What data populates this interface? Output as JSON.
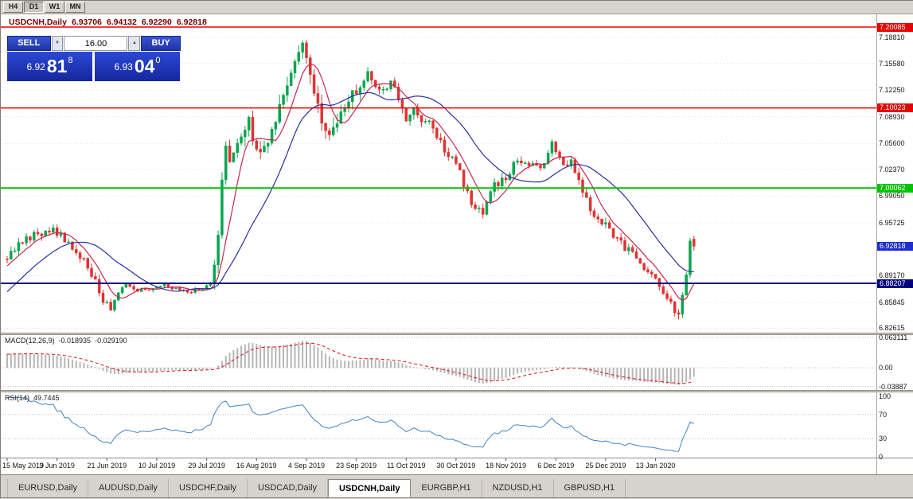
{
  "toolbar": {
    "buttons": [
      {
        "label": "H4",
        "active": false
      },
      {
        "label": "D1",
        "active": true
      },
      {
        "label": "W1",
        "active": false
      },
      {
        "label": "MN",
        "active": false
      }
    ]
  },
  "chart_header": {
    "symbol": "USDCNH,Daily",
    "open": "6.93706",
    "high": "6.94132",
    "low": "6.92290",
    "close": "6.92818"
  },
  "one_click": {
    "sell_label": "SELL",
    "buy_label": "BUY",
    "lot_value": "16.00",
    "icons": {
      "spin_down": "▼",
      "spin_up": "▲"
    },
    "bid": {
      "base": "6.92",
      "pips": "81",
      "sup": "8"
    },
    "ask": {
      "base": "6.93",
      "pips": "04",
      "sup": "0"
    }
  },
  "indicators": {
    "macd": {
      "name": "MACD(12,26,9)",
      "value_main": "-0.018935",
      "value_signal": "-0.029190",
      "axis": [
        "0.063111",
        "0.00",
        "-0.03887"
      ]
    },
    "rsi": {
      "name": "RSI(14)",
      "value": "49.7445",
      "axis": [
        "100",
        "70",
        "30",
        "0"
      ]
    }
  },
  "tabs": [
    {
      "label": "EURUSD,Daily",
      "active": false
    },
    {
      "label": "AUDUSD,Daily",
      "active": false
    },
    {
      "label": "USDCHF,Daily",
      "active": false
    },
    {
      "label": "USDCAD,Daily",
      "active": false
    },
    {
      "label": "USDCNH,Daily",
      "active": true
    },
    {
      "label": "EURGBP,H1",
      "active": false
    },
    {
      "label": "NZDUSD,H1",
      "active": false
    },
    {
      "label": "GBPUSD,H1",
      "active": false
    }
  ],
  "chart_data": {
    "type": "candlestick",
    "symbol": "USDCNH",
    "timeframe": "Daily",
    "x_tick_labels": [
      "15 May 2019",
      "3 Jun 2019",
      "21 Jun 2019",
      "10 Jul 2019",
      "29 Jul 2019",
      "16 Aug 2019",
      "4 Sep 2019",
      "23 Sep 2019",
      "11 Oct 2019",
      "30 Oct 2019",
      "18 Nov 2019",
      "6 Dec 2019",
      "25 Dec 2019",
      "13 Jan 2020"
    ],
    "y_tick_labels": [
      "7.18810",
      "7.15580",
      "7.12250",
      "7.08930",
      "7.05600",
      "7.02370",
      "6.99050",
      "6.95725",
      "6.89170",
      "6.85845",
      "6.82615"
    ],
    "y_range_top": 7.2167,
    "y_range_bottom": 6.8207,
    "grid": "dotted-horizontal",
    "h_lines": [
      {
        "price": 7.20085,
        "label": "7.20085",
        "color": "#e60000",
        "width": 1.5
      },
      {
        "price": 7.10023,
        "label": "7.10023",
        "color": "#e60000",
        "width": 1.5
      },
      {
        "price": 7.00062,
        "label": "7.00062",
        "color": "#00c400",
        "width": 2
      },
      {
        "price": 6.88207,
        "label": "6.88207",
        "color": "#000080",
        "width": 2
      }
    ],
    "current_price": {
      "price": 6.92818,
      "label": "6.92818",
      "color": "#1d2fd0"
    },
    "candles": {
      "count": 180,
      "per_x_tick": 13,
      "close_anchors": [
        [
          0,
          6.916
        ],
        [
          3,
          6.932
        ],
        [
          8,
          6.944
        ],
        [
          12,
          6.948
        ],
        [
          16,
          6.935
        ],
        [
          20,
          6.913
        ],
        [
          23,
          6.882
        ],
        [
          25,
          6.856
        ],
        [
          27,
          6.852
        ],
        [
          29,
          6.87
        ],
        [
          31,
          6.88
        ],
        [
          34,
          6.872
        ],
        [
          37,
          6.876
        ],
        [
          40,
          6.88
        ],
        [
          44,
          6.874
        ],
        [
          48,
          6.872
        ],
        [
          51,
          6.876
        ],
        [
          53,
          6.882
        ],
        [
          54,
          6.905
        ],
        [
          55,
          6.945
        ],
        [
          56,
          7.01
        ],
        [
          57,
          7.048
        ],
        [
          58,
          7.03
        ],
        [
          59,
          7.048
        ],
        [
          61,
          7.06
        ],
        [
          63,
          7.085
        ],
        [
          64,
          7.062
        ],
        [
          66,
          7.045
        ],
        [
          68,
          7.06
        ],
        [
          70,
          7.085
        ],
        [
          72,
          7.115
        ],
        [
          74,
          7.145
        ],
        [
          76,
          7.165
        ],
        [
          77,
          7.185
        ],
        [
          78,
          7.168
        ],
        [
          79,
          7.145
        ],
        [
          80,
          7.12
        ],
        [
          82,
          7.085
        ],
        [
          84,
          7.068
        ],
        [
          86,
          7.08
        ],
        [
          88,
          7.105
        ],
        [
          90,
          7.118
        ],
        [
          92,
          7.125
        ],
        [
          94,
          7.142
        ],
        [
          96,
          7.128
        ],
        [
          98,
          7.12
        ],
        [
          100,
          7.138
        ],
        [
          102,
          7.115
        ],
        [
          104,
          7.088
        ],
        [
          106,
          7.095
        ],
        [
          108,
          7.078
        ],
        [
          110,
          7.082
        ],
        [
          112,
          7.068
        ],
        [
          114,
          7.048
        ],
        [
          116,
          7.038
        ],
        [
          118,
          7.02
        ],
        [
          120,
          6.992
        ],
        [
          122,
          6.978
        ],
        [
          124,
          6.972
        ],
        [
          126,
          6.998
        ],
        [
          128,
          7.008
        ],
        [
          130,
          7.015
        ],
        [
          132,
          7.028
        ],
        [
          134,
          7.035
        ],
        [
          136,
          7.03
        ],
        [
          138,
          7.028
        ],
        [
          140,
          7.032
        ],
        [
          142,
          7.062
        ],
        [
          143,
          7.042
        ],
        [
          145,
          7.035
        ],
        [
          147,
          7.032
        ],
        [
          149,
          7.012
        ],
        [
          151,
          6.985
        ],
        [
          153,
          6.968
        ],
        [
          155,
          6.958
        ],
        [
          157,
          6.948
        ],
        [
          159,
          6.94
        ],
        [
          161,
          6.928
        ],
        [
          163,
          6.916
        ],
        [
          165,
          6.908
        ],
        [
          167,
          6.898
        ],
        [
          169,
          6.89
        ],
        [
          171,
          6.872
        ],
        [
          173,
          6.855
        ],
        [
          174,
          6.845
        ],
        [
          175,
          6.843
        ],
        [
          176,
          6.862
        ],
        [
          177,
          6.888
        ],
        [
          178,
          6.937
        ],
        [
          179,
          6.92818
        ]
      ],
      "prehistory": {
        "count": 40,
        "start": 6.735,
        "end": 6.912
      },
      "last": {
        "open": 6.93706,
        "high": 6.94132,
        "low": 6.9229,
        "close": 6.92818
      },
      "up_color": "#0aa550",
      "down_color": "#e03232",
      "ma_fast": {
        "period": 7,
        "color": "#c9264e"
      },
      "ma_slow": {
        "period": 21,
        "color": "#2a2f9e"
      }
    },
    "macd_panel": {
      "params": [
        12,
        26,
        9
      ],
      "scale_top": 0.068,
      "scale_bottom": -0.046,
      "levels": [
        0.063111,
        0,
        -0.03887
      ],
      "histogram_color": "#b5b5b5",
      "signal_color": "#e01111",
      "last_main": -0.018935,
      "last_signal": -0.02919
    },
    "rsi_panel": {
      "period": 14,
      "levels": [
        70,
        30
      ],
      "color": "#4183c4",
      "last": 49.7445
    }
  }
}
